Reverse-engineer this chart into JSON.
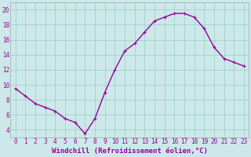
{
  "x": [
    0,
    1,
    2,
    3,
    4,
    5,
    6,
    7,
    8,
    9,
    10,
    11,
    12,
    13,
    14,
    15,
    16,
    17,
    18,
    19,
    20,
    21,
    22,
    23
  ],
  "y": [
    9.5,
    8.5,
    7.5,
    7.0,
    6.5,
    5.5,
    5.0,
    3.5,
    5.5,
    9.0,
    12.0,
    14.5,
    15.5,
    17.0,
    18.5,
    19.0,
    19.5,
    19.5,
    19.0,
    17.5,
    15.0,
    13.5,
    13.0,
    12.5
  ],
  "line_color": "#990099",
  "marker": "+",
  "marker_size": 3,
  "marker_edge_width": 0.8,
  "xlabel": "Windchill (Refroidissement éolien,°C)",
  "xlabel_fontsize": 6.5,
  "ytick_vals": [
    4,
    6,
    8,
    10,
    12,
    14,
    16,
    18,
    20
  ],
  "xtick_labels": [
    "0",
    "1",
    "2",
    "3",
    "4",
    "5",
    "6",
    "7",
    "8",
    "9",
    "10",
    "11",
    "12",
    "13",
    "14",
    "15",
    "16",
    "17",
    "18",
    "19",
    "20",
    "21",
    "22",
    "23"
  ],
  "ylim": [
    3.0,
    21.0
  ],
  "xlim": [
    -0.5,
    23.5
  ],
  "bg_color": "#cce8e8",
  "grid_color": "#99cccc",
  "tick_fontsize": 5.5,
  "line_width": 1.0
}
